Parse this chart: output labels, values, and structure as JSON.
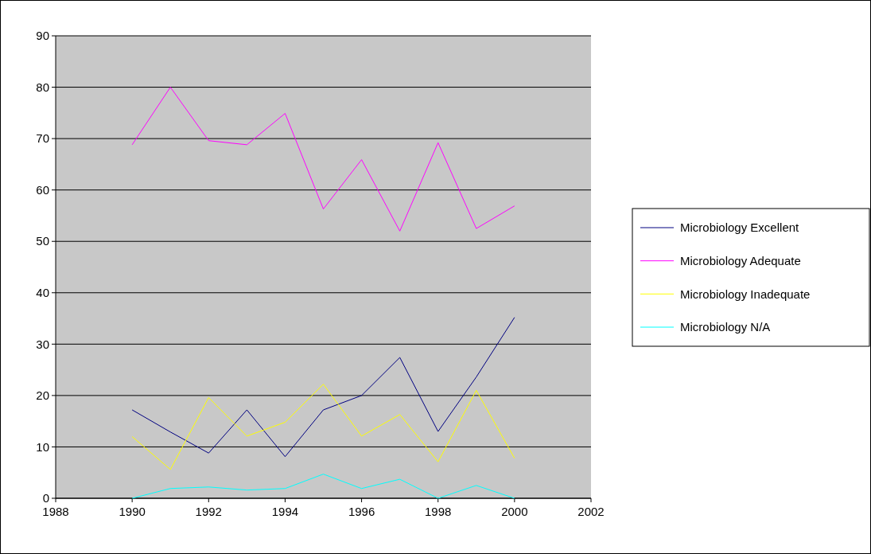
{
  "chart_data": {
    "type": "line",
    "x": [
      1990,
      1991,
      1992,
      1993,
      1994,
      1995,
      1996,
      1997,
      1998,
      1999,
      2000
    ],
    "series": [
      {
        "name": "Microbiology Excellent",
        "color": "#000080",
        "values": [
          17.2,
          12.9,
          8.8,
          17.2,
          8.1,
          17.2,
          20,
          27.4,
          13,
          23.6,
          35.2
        ]
      },
      {
        "name": "Microbiology Adequate",
        "color": "#ff00ff",
        "values": [
          68.8,
          80,
          69.6,
          68.8,
          74.9,
          56.3,
          65.9,
          52,
          69.2,
          52.5,
          56.9
        ]
      },
      {
        "name": "Microbiology Inadequate",
        "color": "#ffff00",
        "values": [
          12,
          5.6,
          19.6,
          12.1,
          14.8,
          22.2,
          12.1,
          16.3,
          7.1,
          21,
          7.8
        ]
      },
      {
        "name": "Microbiology N/A",
        "color": "#00ffff",
        "values": [
          0,
          1.9,
          2.2,
          1.6,
          1.9,
          4.7,
          1.9,
          3.7,
          0,
          2.5,
          0
        ]
      }
    ],
    "xlim": [
      1988,
      2002
    ],
    "xticks": [
      1988,
      1990,
      1992,
      1994,
      1996,
      1998,
      2000,
      2002
    ],
    "ylim": [
      0,
      90
    ],
    "yticks": [
      0,
      10,
      20,
      30,
      40,
      50,
      60,
      70,
      80,
      90
    ],
    "grid": "y",
    "legend": "right",
    "marker": "none",
    "line_style": "solid"
  }
}
